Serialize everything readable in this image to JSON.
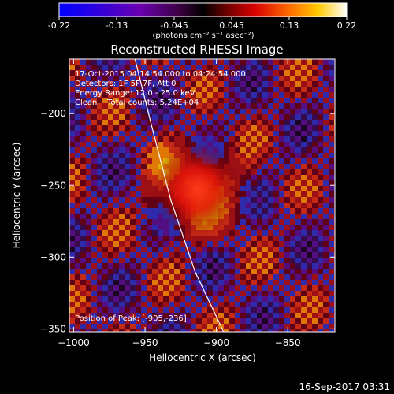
{
  "colorbar": {
    "ticks": [
      "-0.22",
      "-0.13",
      "-0.045",
      "0.045",
      "0.13",
      "0.22"
    ],
    "unit_label": "(photons cm⁻² s⁻¹ asec⁻²)",
    "range": [
      -0.22,
      0.22
    ]
  },
  "info": {
    "line1": "17-Oct-2015 04:14:54.000 to 04:24:54.000",
    "line2": "Detectors: 1F 5F 7F, Att 0",
    "line3": "Energy Range: 12.0 - 25.0 keV",
    "line4": "Clean    Total counts: 5.24E+04",
    "peak": "Position of Peak: [-905,-236]"
  },
  "footer": {
    "timestamp": "16-Sep-2017 03:31"
  },
  "chart_data": {
    "type": "heatmap",
    "title": "Reconstructed RHESSI Image",
    "xlabel": "Heliocentric X (arcsec)",
    "ylabel": "Heliocentric Y (arcsec)",
    "xlim": [
      -1003,
      -817
    ],
    "ylim": [
      -352,
      -162
    ],
    "xticks": [
      -1000,
      -950,
      -900,
      -850
    ],
    "yticks": [
      -200,
      -250,
      -300,
      -350
    ],
    "peak": {
      "x": -905,
      "y": -236
    },
    "color_scale": "blue-purple-red-yellow-white",
    "limb_line": [
      [
        -957,
        -162
      ],
      [
        -945,
        -210
      ],
      [
        -932,
        -260
      ],
      [
        -915,
        -310
      ],
      [
        -895,
        -352
      ]
    ]
  }
}
